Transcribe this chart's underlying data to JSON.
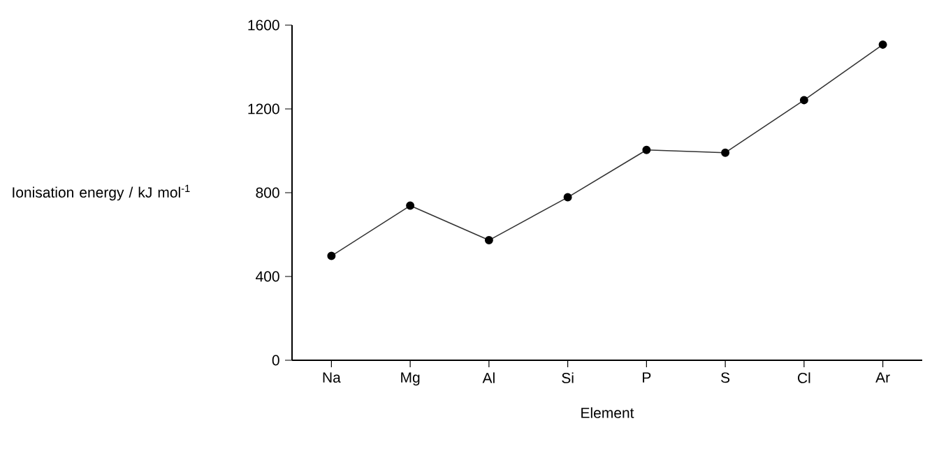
{
  "chart_data": {
    "type": "line",
    "xlabel": "Element",
    "ylabel": "Ionisation energy / kJ mol$^{-1}$",
    "categories": [
      "Na",
      "Mg",
      "Al",
      "Si",
      "P",
      "S",
      "Cl",
      "Ar"
    ],
    "values": [
      498,
      738,
      573,
      778,
      1004,
      991,
      1242,
      1507
    ],
    "color": "#333333",
    "marker": "circle",
    "line_style": "solid",
    "ylim": [
      0,
      1600
    ],
    "yticks": [
      0,
      400,
      800,
      1200,
      1600
    ]
  }
}
